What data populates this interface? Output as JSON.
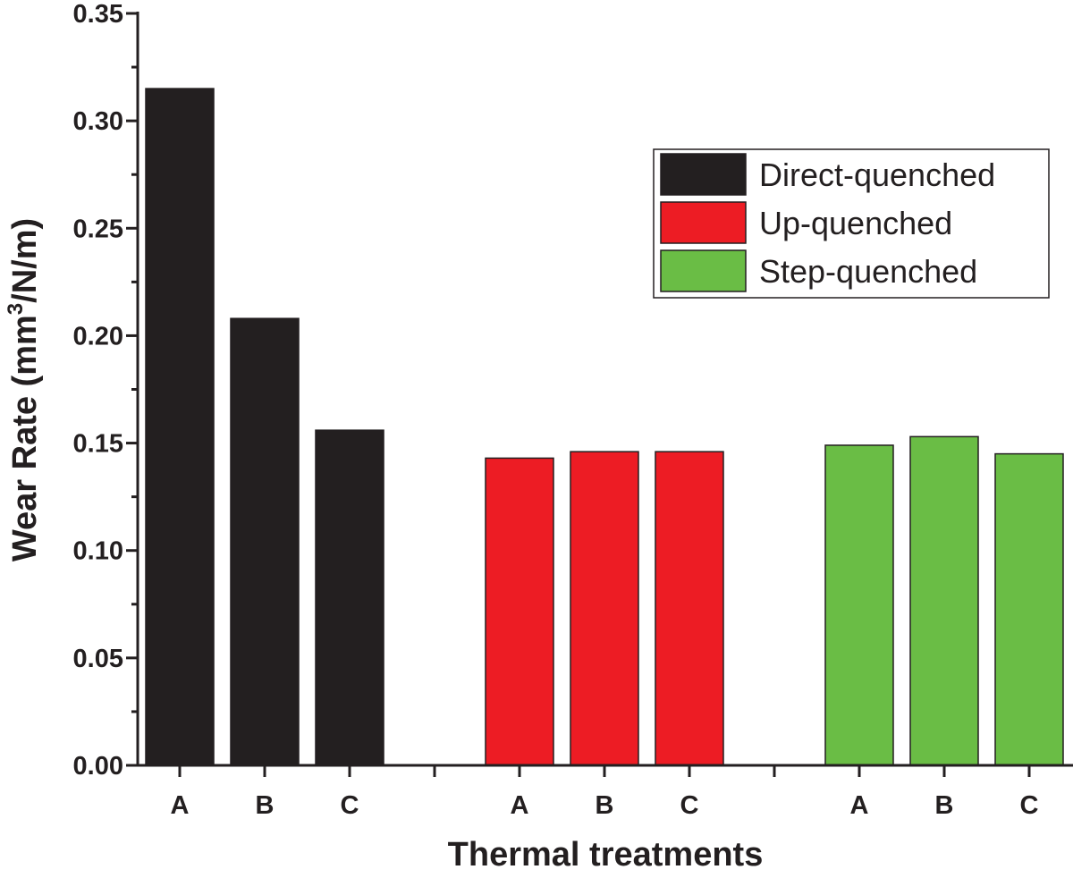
{
  "chart_data": {
    "type": "bar",
    "xlabel": "Thermal treatments",
    "ylabel_main": "Wear Rate (mm",
    "ylabel_sup": "3",
    "ylabel_end": "/N/m)",
    "ylim": [
      0,
      0.35
    ],
    "yticks": [
      "0.00",
      "0.05",
      "0.10",
      "0.15",
      "0.20",
      "0.25",
      "0.30",
      "0.35"
    ],
    "legend_position": "top-right",
    "grid": false,
    "groups": [
      {
        "name": "Direct-quenched",
        "color": "#231f20",
        "categories": [
          "A",
          "B",
          "C"
        ],
        "values": [
          0.315,
          0.208,
          0.156
        ]
      },
      {
        "name": "Up-quenched",
        "color": "#ed1c24",
        "categories": [
          "A",
          "B",
          "C"
        ],
        "values": [
          0.143,
          0.146,
          0.146
        ]
      },
      {
        "name": "Step-quenched",
        "color": "#6abd45",
        "categories": [
          "A",
          "B",
          "C"
        ],
        "values": [
          0.149,
          0.153,
          0.145
        ]
      }
    ]
  }
}
